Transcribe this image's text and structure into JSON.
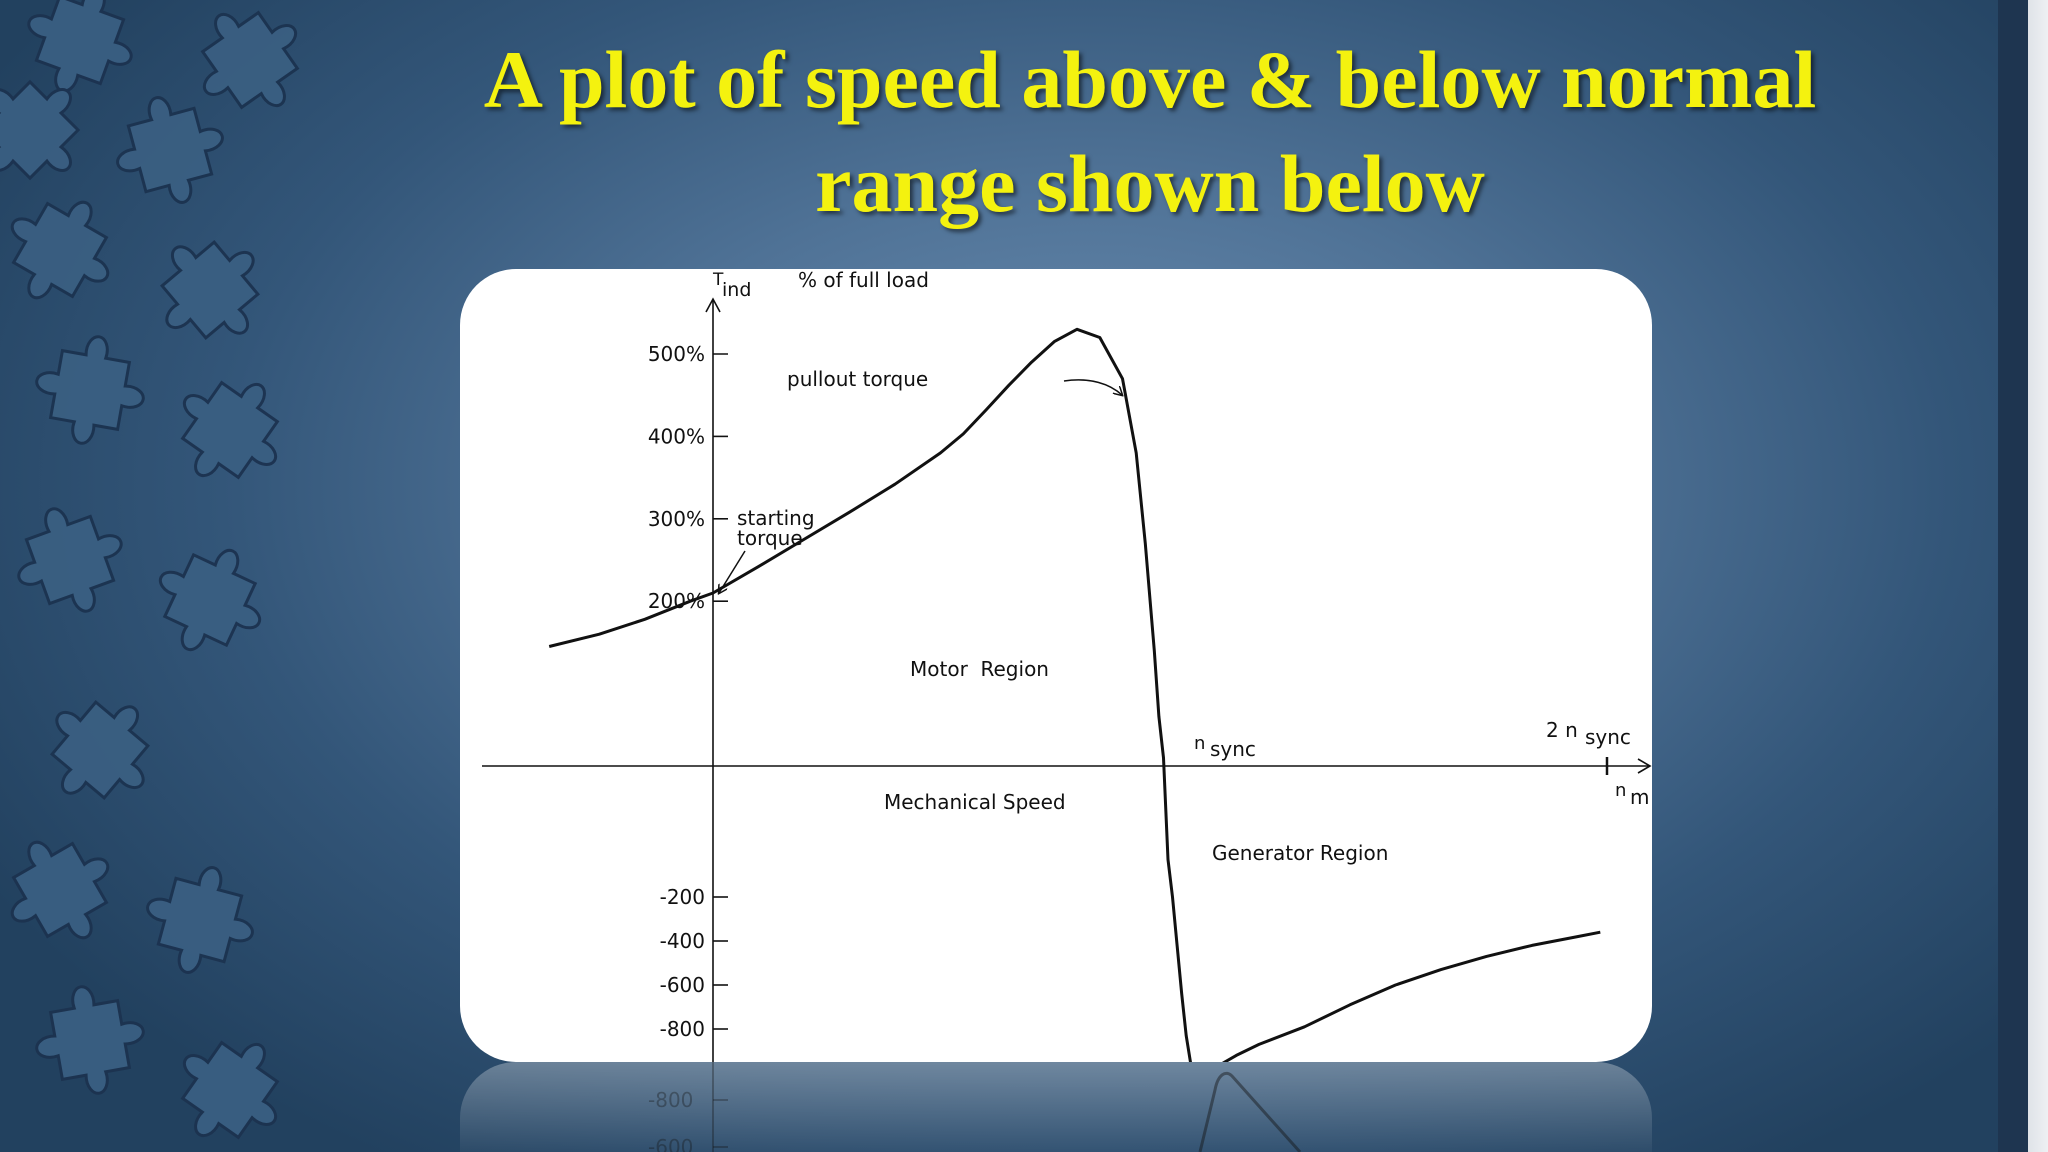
{
  "slide": {
    "title_line1": "A plot of speed above & below normal",
    "title_line2": "range shown below",
    "title_color": "#f4f20f"
  },
  "chart_data": {
    "type": "line",
    "title": "",
    "xlabel": "Mechanical Speed",
    "ylabel": "T",
    "ylabel_subscript": "ind",
    "y_unit_label": "% of full load",
    "x_axis_label": "n",
    "x_axis_label_subscript": "m",
    "y_ticks_positive": [
      {
        "value": 200,
        "label": "200%"
      },
      {
        "value": 300,
        "label": "300%"
      },
      {
        "value": 400,
        "label": "400%"
      },
      {
        "value": 500,
        "label": "500%"
      }
    ],
    "y_ticks_negative": [
      {
        "value": -200,
        "label": "-200"
      },
      {
        "value": -400,
        "label": "-400"
      },
      {
        "value": -600,
        "label": "-600"
      },
      {
        "value": -800,
        "label": "-800"
      }
    ],
    "x_ticks": [
      {
        "value": 1,
        "label": "n",
        "subscript": "sync"
      },
      {
        "value": 2,
        "label": "2 n",
        "subscript": "sync"
      }
    ],
    "xlim": [
      -0.5,
      2.1
    ],
    "ylim": [
      -1050,
      620
    ],
    "series": [
      {
        "x": [
          -0.36,
          -0.25,
          -0.15,
          -0.05,
          0,
          0.1,
          0.2,
          0.3,
          0.4,
          0.5,
          0.55,
          0.6,
          0.65,
          0.7,
          0.75,
          0.8,
          0.85,
          0.9,
          0.93,
          0.95,
          0.97,
          0.98,
          0.99,
          1.0,
          1.01,
          1.02,
          1.03,
          1.04,
          1.05,
          1.07,
          1.1,
          1.15,
          1.2,
          1.3,
          1.4,
          1.5,
          1.6,
          1.7,
          1.8,
          1.9,
          1.95
        ],
        "values": [
          145,
          160,
          178,
          200,
          210,
          242,
          275,
          308,
          342,
          380,
          403,
          432,
          462,
          490,
          515,
          530,
          520,
          470,
          380,
          270,
          140,
          60,
          10,
          -30,
          -200,
          -420,
          -640,
          -830,
          -960,
          -1000,
          -980,
          -920,
          -870,
          -790,
          -690,
          -600,
          -530,
          -470,
          -420,
          -380,
          -360
        ]
      }
    ],
    "annotations": [
      {
        "id": "pullout",
        "text": "pullout torque"
      },
      {
        "id": "starting_line1",
        "text": "starting"
      },
      {
        "id": "starting_line2",
        "text": "torque"
      },
      {
        "id": "motor",
        "text": "Motor  Region"
      },
      {
        "id": "generator",
        "text": "Generator Region"
      }
    ],
    "reflection_tick_labels": [
      "-800",
      "-600"
    ],
    "grid": false,
    "legend": "none"
  }
}
